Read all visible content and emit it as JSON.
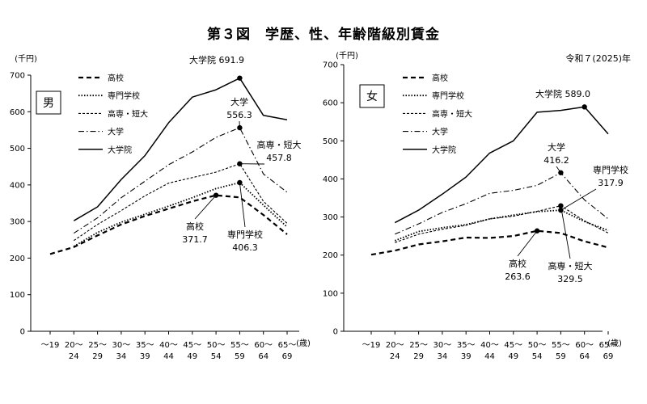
{
  "title": "第３図　学歴、性、年齢階級別賃金",
  "chart_data": [
    {
      "type": "line",
      "panel_label": "男",
      "unit_label": "(千円)",
      "xlabel": "(歳)",
      "ylim": [
        0,
        700
      ],
      "yticks": [
        0,
        100,
        200,
        300,
        400,
        500,
        600,
        700
      ],
      "categories": [
        {
          "top": "～19",
          "bottom": ""
        },
        {
          "top": "20～",
          "bottom": "24"
        },
        {
          "top": "25～",
          "bottom": "29"
        },
        {
          "top": "30～",
          "bottom": "34"
        },
        {
          "top": "35～",
          "bottom": "39"
        },
        {
          "top": "40～",
          "bottom": "44"
        },
        {
          "top": "45～",
          "bottom": "49"
        },
        {
          "top": "50～",
          "bottom": "54"
        },
        {
          "top": "55～",
          "bottom": "59"
        },
        {
          "top": "60～",
          "bottom": "64"
        },
        {
          "top": "65～",
          "bottom": "69"
        }
      ],
      "series": [
        {
          "name": "高校",
          "style": "dashed",
          "values": [
            211,
            230,
            262,
            292,
            315,
            335,
            355,
            371.7,
            366,
            318,
            265
          ]
        },
        {
          "name": "専門学校",
          "style": "dotted",
          "values": [
            null,
            232,
            270,
            298,
            320,
            342,
            365,
            390,
            406.3,
            345,
            285
          ]
        },
        {
          "name": "高専・短大",
          "style": "finedash",
          "values": [
            null,
            248,
            292,
            330,
            370,
            405,
            420,
            435,
            457.8,
            355,
            295
          ]
        },
        {
          "name": "大学",
          "style": "dashdot",
          "values": [
            null,
            268,
            310,
            365,
            410,
            455,
            490,
            530,
            556.3,
            430,
            380
          ]
        },
        {
          "name": "大学院",
          "style": "solid",
          "values": [
            null,
            302,
            340,
            415,
            480,
            570,
            640,
            660,
            691.9,
            590,
            578
          ]
        }
      ],
      "annotations": [
        {
          "series": "大学院",
          "lines": [
            "大学院",
            "691.9"
          ]
        },
        {
          "series": "大学",
          "lines": [
            "大学",
            "556.3"
          ]
        },
        {
          "series": "高専・短大",
          "lines": [
            "高専・短大",
            "457.8"
          ]
        },
        {
          "series": "高校",
          "lines": [
            "高校",
            "371.7"
          ]
        },
        {
          "series": "専門学校",
          "lines": [
            "専門学校",
            "406.3"
          ]
        }
      ]
    },
    {
      "type": "line",
      "panel_label": "女",
      "unit_label": "(千円)",
      "xlabel": "(歳)",
      "year_label": "令和７(2025)年",
      "ylim": [
        0,
        700
      ],
      "yticks": [
        0,
        100,
        200,
        300,
        400,
        500,
        600,
        700
      ],
      "categories": [
        {
          "top": "～19",
          "bottom": ""
        },
        {
          "top": "20～",
          "bottom": "24"
        },
        {
          "top": "25～",
          "bottom": "29"
        },
        {
          "top": "30～",
          "bottom": "34"
        },
        {
          "top": "35～",
          "bottom": "39"
        },
        {
          "top": "40～",
          "bottom": "44"
        },
        {
          "top": "45～",
          "bottom": "49"
        },
        {
          "top": "50～",
          "bottom": "54"
        },
        {
          "top": "55～",
          "bottom": "59"
        },
        {
          "top": "60～",
          "bottom": "64"
        },
        {
          "top": "65～",
          "bottom": "69"
        }
      ],
      "series": [
        {
          "name": "高校",
          "style": "dashed",
          "values": [
            201,
            212,
            228,
            236,
            246,
            245,
            250,
            263.6,
            258,
            236,
            220
          ]
        },
        {
          "name": "専門学校",
          "style": "dotted",
          "values": [
            null,
            238,
            262,
            272,
            280,
            295,
            305,
            314,
            317.9,
            288,
            265
          ]
        },
        {
          "name": "高専・短大",
          "style": "finedash",
          "values": [
            null,
            233,
            255,
            268,
            278,
            295,
            302,
            315,
            329.5,
            290,
            258
          ]
        },
        {
          "name": "大学",
          "style": "dashdot",
          "values": [
            null,
            255,
            282,
            312,
            335,
            362,
            370,
            383,
            416.2,
            345,
            295
          ]
        },
        {
          "name": "大学院",
          "style": "solid",
          "values": [
            null,
            285,
            318,
            360,
            405,
            468,
            500,
            575,
            580,
            589.0,
            518
          ]
        }
      ],
      "annotations": [
        {
          "series": "大学院",
          "lines": [
            "大学院",
            "589.0"
          ]
        },
        {
          "series": "大学",
          "lines": [
            "大学",
            "416.2"
          ]
        },
        {
          "series": "専門学校",
          "lines": [
            "専門学校",
            "317.9"
          ]
        },
        {
          "series": "高校",
          "lines": [
            "高校",
            "263.6"
          ]
        },
        {
          "series": "高専・短大",
          "lines": [
            "高専・短大",
            "329.5"
          ]
        }
      ]
    }
  ]
}
